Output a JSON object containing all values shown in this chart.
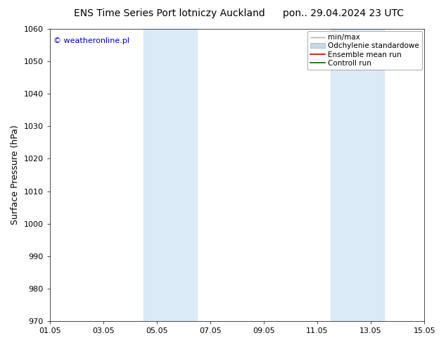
{
  "title_left": "ENS Time Series Port lotniczy Auckland",
  "title_right": "pon.. 29.04.2024 23 UTC",
  "ylabel": "Surface Pressure (hPa)",
  "ylim": [
    970,
    1060
  ],
  "yticks": [
    970,
    980,
    990,
    1000,
    1010,
    1020,
    1030,
    1040,
    1050,
    1060
  ],
  "xlim": [
    0,
    14
  ],
  "xtick_labels": [
    "01.05",
    "03.05",
    "05.05",
    "07.05",
    "09.05",
    "11.05",
    "13.05",
    "15.05"
  ],
  "xtick_positions": [
    0,
    2,
    4,
    6,
    8,
    10,
    12,
    14
  ],
  "blue_bands": [
    {
      "start": 3.5,
      "end": 5.5
    },
    {
      "start": 10.5,
      "end": 12.5
    }
  ],
  "background_color": "#ffffff",
  "band_color": "#daeaf7",
  "plot_bg_color": "#ffffff",
  "watermark_text": "© weatheronline.pl",
  "watermark_color": "#0000cc",
  "title_fontsize": 10,
  "axis_label_fontsize": 9,
  "tick_fontsize": 8,
  "legend_fontsize": 7.5
}
